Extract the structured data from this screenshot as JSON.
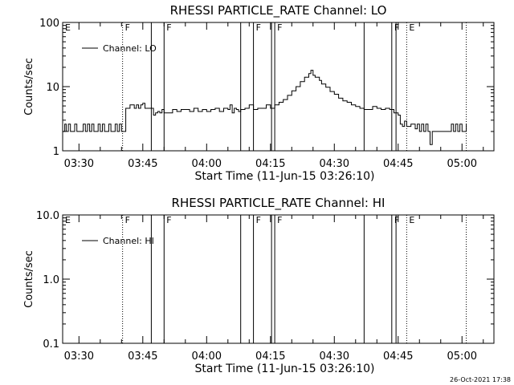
{
  "chart_data": [
    {
      "type": "line",
      "title": "RHESSI PARTICLE_RATE Channel: LO",
      "xlabel": "Start Time (11-Jun-15 03:26:10)",
      "ylabel": "Counts/sec",
      "y_scale": "log",
      "ylim": [
        1,
        100
      ],
      "y_ticks": [
        "1",
        "10",
        "100"
      ],
      "xlim": [
        "03:26:10",
        "05:07:30"
      ],
      "x_ticks": [
        "03:30",
        "03:45",
        "04:00",
        "04:15",
        "04:30",
        "04:45",
        "05:00"
      ],
      "legend": {
        "position": "top-left",
        "entries": [
          "Channel: LO"
        ]
      },
      "flags": [
        {
          "label": "E",
          "time": "03:26:10",
          "style": "none"
        },
        {
          "label": "F",
          "time": "03:40:15",
          "style": "dotted"
        },
        {
          "label": "",
          "time": "03:47:00",
          "style": "solid"
        },
        {
          "label": "F",
          "time": "03:50:00",
          "style": "solid"
        },
        {
          "label": "",
          "time": "04:08:00",
          "style": "solid"
        },
        {
          "label": "F",
          "time": "04:11:00",
          "style": "solid"
        },
        {
          "label": "",
          "time": "04:15:15",
          "style": "solid"
        },
        {
          "label": "F",
          "time": "04:16:00",
          "style": "solid"
        },
        {
          "label": "",
          "time": "04:37:00",
          "style": "solid"
        },
        {
          "label": "F",
          "time": "04:43:30",
          "style": "solid"
        },
        {
          "label": "",
          "time": "04:44:30",
          "style": "solid"
        },
        {
          "label": "E",
          "time": "04:47:00",
          "style": "dotted"
        },
        {
          "label": "",
          "time": "05:01:00",
          "style": "dotted"
        }
      ],
      "series": [
        {
          "name": "Channel: LO",
          "time": [
            "03:26:10",
            "03:26:40",
            "03:27:00",
            "03:27:30",
            "03:28:00",
            "03:28:30",
            "03:29:00",
            "03:29:30",
            "03:30:00",
            "03:30:30",
            "03:31:00",
            "03:31:30",
            "03:32:00",
            "03:32:30",
            "03:33:00",
            "03:33:30",
            "03:34:00",
            "03:34:30",
            "03:35:00",
            "03:35:30",
            "03:36:00",
            "03:36:30",
            "03:37:00",
            "03:37:30",
            "03:38:00",
            "03:38:30",
            "03:39:00",
            "03:39:30",
            "03:40:00",
            "03:40:15",
            "03:41:00",
            "03:41:30",
            "03:42:00",
            "03:42:30",
            "03:43:00",
            "03:43:30",
            "03:44:00",
            "03:44:30",
            "03:45:00",
            "03:45:30",
            "03:46:00",
            "03:46:30",
            "03:47:00",
            "03:47:30",
            "03:48:00",
            "03:48:30",
            "03:49:00",
            "03:49:30",
            "03:50:00",
            "03:52:00",
            "03:53:00",
            "03:54:00",
            "03:55:00",
            "03:56:00",
            "03:57:00",
            "03:58:00",
            "03:59:00",
            "04:00:00",
            "04:01:00",
            "04:02:00",
            "04:03:00",
            "04:04:00",
            "04:05:00",
            "04:05:30",
            "04:06:00",
            "04:06:30",
            "04:07:00",
            "04:07:30",
            "04:08:00",
            "04:09:00",
            "04:10:00",
            "04:11:00",
            "04:12:00",
            "04:13:00",
            "04:14:00",
            "04:15:00",
            "04:16:00",
            "04:17:00",
            "04:18:00",
            "04:19:00",
            "04:20:00",
            "04:21:00",
            "04:22:00",
            "04:23:00",
            "04:24:00",
            "04:24:30",
            "04:25:00",
            "04:25:30",
            "04:26:00",
            "04:26:30",
            "04:27:00",
            "04:28:00",
            "04:29:00",
            "04:30:00",
            "04:31:00",
            "04:32:00",
            "04:33:00",
            "04:34:00",
            "04:35:00",
            "04:36:00",
            "04:37:00",
            "04:38:00",
            "04:39:00",
            "04:40:00",
            "04:41:00",
            "04:42:00",
            "04:43:00",
            "04:44:00",
            "04:45:00",
            "04:45:30",
            "04:46:00",
            "04:46:30",
            "04:47:00",
            "04:47:30",
            "04:48:00",
            "04:48:30",
            "04:49:00",
            "04:49:30",
            "04:50:00",
            "04:50:30",
            "04:51:00",
            "04:51:30",
            "04:52:00",
            "04:52:30",
            "04:53:00",
            "04:53:30",
            "04:54:00",
            "04:54:30",
            "04:55:00",
            "04:56:00",
            "04:57:00",
            "04:57:30",
            "04:58:00",
            "04:58:30",
            "04:59:00",
            "04:59:30",
            "05:00:00",
            "05:00:30",
            "05:01:00"
          ],
          "values": [
            2,
            2.6,
            2,
            2.6,
            2,
            2,
            2.6,
            2,
            2,
            2,
            2.6,
            2,
            2.6,
            2,
            2.6,
            2,
            2,
            2.6,
            2,
            2.6,
            2,
            2,
            2.6,
            2,
            2,
            2.6,
            2,
            2.6,
            2,
            2,
            4.6,
            4.6,
            5.2,
            5.2,
            4.6,
            5.2,
            4.6,
            5.2,
            5.5,
            4.6,
            4.6,
            4.6,
            4.6,
            3.6,
            3.9,
            4.1,
            3.9,
            4.4,
            3.9,
            4.4,
            4.1,
            4.4,
            4.4,
            4.1,
            4.6,
            4.1,
            4.4,
            4.1,
            4.4,
            4.6,
            4.1,
            4.6,
            4.4,
            5.2,
            3.9,
            4.6,
            4.4,
            4.1,
            4.4,
            4.6,
            5.2,
            4.4,
            4.6,
            4.6,
            5.2,
            4.6,
            5.2,
            5.7,
            6.3,
            7.3,
            8.6,
            10,
            12,
            14,
            16,
            18,
            15,
            14,
            14,
            12.5,
            11,
            9.8,
            8.4,
            7.6,
            6.6,
            6,
            5.7,
            5.2,
            4.9,
            4.6,
            4.4,
            4.4,
            4.9,
            4.6,
            4.4,
            4.6,
            4.4,
            3.9,
            3.6,
            2.6,
            2.4,
            2.9,
            2.4,
            2.4,
            2.6,
            2.6,
            2.2,
            2.6,
            2,
            2.6,
            2,
            2.6,
            2,
            1.25,
            2,
            2,
            2,
            2,
            2,
            2,
            2,
            2.6,
            2,
            2.6,
            2,
            2.6,
            2,
            2,
            2.6
          ]
        }
      ]
    },
    {
      "type": "line",
      "title": "RHESSI PARTICLE_RATE Channel: HI",
      "xlabel": "Start Time (11-Jun-15 03:26:10)",
      "ylabel": "Counts/sec",
      "y_scale": "log",
      "ylim": [
        0.1,
        10
      ],
      "y_ticks": [
        "0.1",
        "1.0",
        "10.0"
      ],
      "xlim": [
        "03:26:10",
        "05:07:30"
      ],
      "x_ticks": [
        "03:30",
        "03:45",
        "04:00",
        "04:15",
        "04:30",
        "04:45",
        "05:00"
      ],
      "legend": {
        "position": "top-left",
        "entries": [
          "Channel: HI"
        ]
      },
      "flags": [
        {
          "label": "E",
          "time": "03:26:10",
          "style": "none"
        },
        {
          "label": "F",
          "time": "03:40:15",
          "style": "dotted"
        },
        {
          "label": "",
          "time": "03:47:00",
          "style": "solid"
        },
        {
          "label": "F",
          "time": "03:50:00",
          "style": "solid"
        },
        {
          "label": "",
          "time": "04:08:00",
          "style": "solid"
        },
        {
          "label": "F",
          "time": "04:11:00",
          "style": "solid"
        },
        {
          "label": "",
          "time": "04:15:15",
          "style": "solid"
        },
        {
          "label": "F",
          "time": "04:16:00",
          "style": "solid"
        },
        {
          "label": "",
          "time": "04:37:00",
          "style": "solid"
        },
        {
          "label": "F",
          "time": "04:43:30",
          "style": "solid"
        },
        {
          "label": "",
          "time": "04:44:30",
          "style": "solid"
        },
        {
          "label": "E",
          "time": "04:47:00",
          "style": "dotted"
        },
        {
          "label": "",
          "time": "05:01:00",
          "style": "dotted"
        }
      ],
      "series": [
        {
          "name": "Channel: HI",
          "time": [],
          "values": []
        }
      ]
    }
  ],
  "footer": {
    "timestamp": "26-Oct-2021 17:38"
  }
}
